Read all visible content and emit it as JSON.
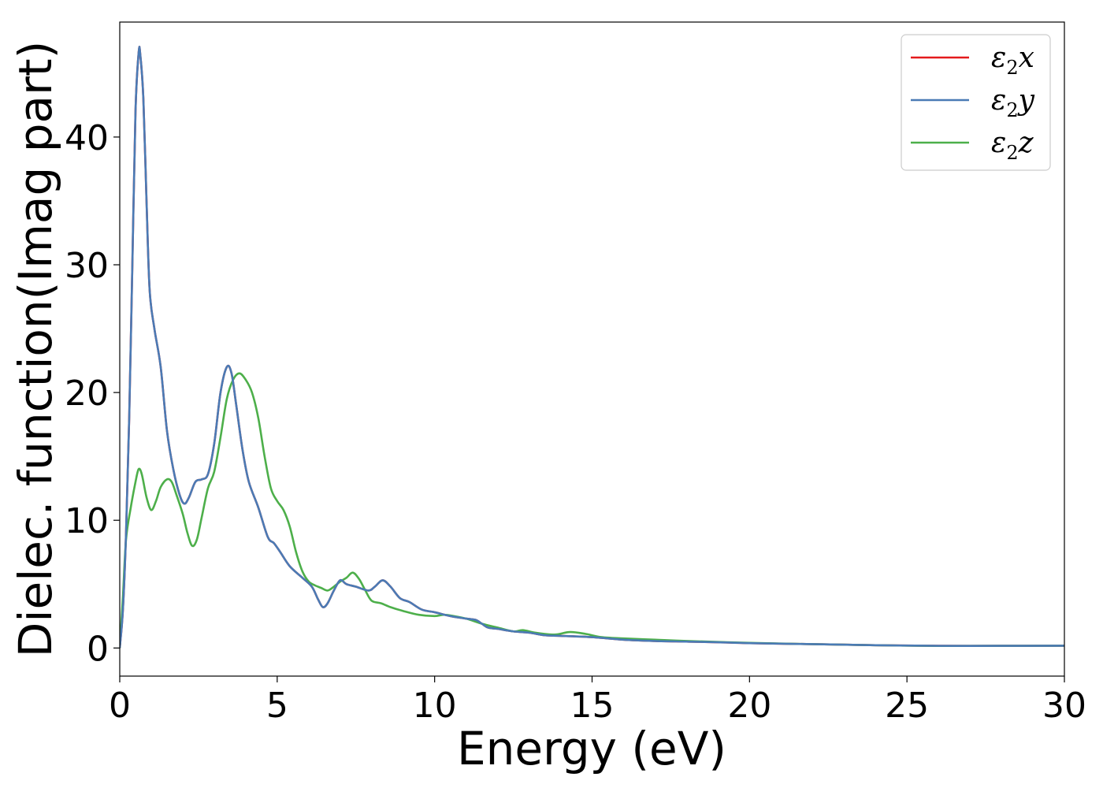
{
  "chart_data": {
    "type": "line",
    "xlabel": "Energy (eV)",
    "ylabel": "Dielec. function(Imag part)",
    "xlim": [
      0,
      30
    ],
    "ylim": [
      -2.2,
      49
    ],
    "xticks": [
      0,
      5,
      10,
      15,
      20,
      25,
      30
    ],
    "yticks": [
      0,
      10,
      20,
      30,
      40
    ],
    "grid": false,
    "legend_position": "top-right",
    "series": [
      {
        "name": "ε₂x",
        "legend": {
          "base": "ε",
          "sub": "2",
          "var": "x"
        },
        "color": "#e41a1c",
        "points": [
          [
            0,
            0
          ],
          [
            0.1,
            3
          ],
          [
            0.2,
            9
          ],
          [
            0.3,
            18
          ],
          [
            0.4,
            30
          ],
          [
            0.5,
            42
          ],
          [
            0.6,
            46.6
          ],
          [
            0.65,
            46.5
          ],
          [
            0.75,
            43
          ],
          [
            0.85,
            35
          ],
          [
            0.95,
            28
          ],
          [
            1.1,
            25
          ],
          [
            1.3,
            22
          ],
          [
            1.5,
            17
          ],
          [
            1.7,
            14
          ],
          [
            1.9,
            12
          ],
          [
            2.05,
            11.3
          ],
          [
            2.2,
            11.8
          ],
          [
            2.4,
            13
          ],
          [
            2.6,
            13.2
          ],
          [
            2.8,
            13.6
          ],
          [
            3.0,
            16
          ],
          [
            3.2,
            20
          ],
          [
            3.4,
            22
          ],
          [
            3.55,
            21.5
          ],
          [
            3.7,
            19
          ],
          [
            3.9,
            15.5
          ],
          [
            4.1,
            13
          ],
          [
            4.4,
            11
          ],
          [
            4.7,
            8.7
          ],
          [
            4.9,
            8.2
          ],
          [
            5.1,
            7.5
          ],
          [
            5.4,
            6.4
          ],
          [
            5.8,
            5.5
          ],
          [
            6.1,
            4.8
          ],
          [
            6.3,
            3.8
          ],
          [
            6.45,
            3.2
          ],
          [
            6.6,
            3.5
          ],
          [
            6.8,
            4.5
          ],
          [
            7.0,
            5.3
          ],
          [
            7.2,
            5.0
          ],
          [
            7.5,
            4.8
          ],
          [
            7.9,
            4.5
          ],
          [
            8.1,
            4.8
          ],
          [
            8.35,
            5.3
          ],
          [
            8.6,
            4.8
          ],
          [
            8.9,
            3.9
          ],
          [
            9.2,
            3.6
          ],
          [
            9.6,
            3.0
          ],
          [
            10,
            2.8
          ],
          [
            10.5,
            2.5
          ],
          [
            11.0,
            2.3
          ],
          [
            11.3,
            2.2
          ],
          [
            11.5,
            1.9
          ],
          [
            11.7,
            1.6
          ],
          [
            12.0,
            1.5
          ],
          [
            12.5,
            1.3
          ],
          [
            13.0,
            1.2
          ],
          [
            13.5,
            1.0
          ],
          [
            14,
            0.95
          ],
          [
            15,
            0.85
          ],
          [
            16,
            0.65
          ],
          [
            17,
            0.55
          ],
          [
            18,
            0.5
          ],
          [
            19,
            0.45
          ],
          [
            20,
            0.38
          ],
          [
            22,
            0.3
          ],
          [
            24,
            0.22
          ],
          [
            26,
            0.17
          ],
          [
            28,
            0.17
          ],
          [
            30,
            0.18
          ]
        ]
      },
      {
        "name": "ε₂y",
        "legend": {
          "base": "ε",
          "sub": "2",
          "var": "y"
        },
        "color": "#4a7bb5",
        "points": [
          [
            0,
            0
          ],
          [
            0.1,
            3
          ],
          [
            0.2,
            9
          ],
          [
            0.3,
            18
          ],
          [
            0.4,
            30
          ],
          [
            0.5,
            42
          ],
          [
            0.6,
            46.6
          ],
          [
            0.65,
            46.5
          ],
          [
            0.75,
            43
          ],
          [
            0.85,
            35
          ],
          [
            0.95,
            28
          ],
          [
            1.1,
            25
          ],
          [
            1.3,
            22
          ],
          [
            1.5,
            17
          ],
          [
            1.7,
            14
          ],
          [
            1.9,
            12
          ],
          [
            2.05,
            11.3
          ],
          [
            2.2,
            11.8
          ],
          [
            2.4,
            13
          ],
          [
            2.6,
            13.2
          ],
          [
            2.8,
            13.6
          ],
          [
            3.0,
            16
          ],
          [
            3.2,
            20
          ],
          [
            3.4,
            22
          ],
          [
            3.55,
            21.5
          ],
          [
            3.7,
            19
          ],
          [
            3.9,
            15.5
          ],
          [
            4.1,
            13
          ],
          [
            4.4,
            11
          ],
          [
            4.7,
            8.7
          ],
          [
            4.9,
            8.2
          ],
          [
            5.1,
            7.5
          ],
          [
            5.4,
            6.4
          ],
          [
            5.8,
            5.5
          ],
          [
            6.1,
            4.8
          ],
          [
            6.3,
            3.8
          ],
          [
            6.45,
            3.2
          ],
          [
            6.6,
            3.5
          ],
          [
            6.8,
            4.5
          ],
          [
            7.0,
            5.3
          ],
          [
            7.2,
            5.0
          ],
          [
            7.5,
            4.8
          ],
          [
            7.9,
            4.5
          ],
          [
            8.1,
            4.8
          ],
          [
            8.35,
            5.3
          ],
          [
            8.6,
            4.8
          ],
          [
            8.9,
            3.9
          ],
          [
            9.2,
            3.6
          ],
          [
            9.6,
            3.0
          ],
          [
            10,
            2.8
          ],
          [
            10.5,
            2.5
          ],
          [
            11.0,
            2.3
          ],
          [
            11.3,
            2.2
          ],
          [
            11.5,
            1.9
          ],
          [
            11.7,
            1.6
          ],
          [
            12.0,
            1.5
          ],
          [
            12.5,
            1.3
          ],
          [
            13.0,
            1.2
          ],
          [
            13.5,
            1.0
          ],
          [
            14,
            0.95
          ],
          [
            15,
            0.85
          ],
          [
            16,
            0.65
          ],
          [
            17,
            0.55
          ],
          [
            18,
            0.5
          ],
          [
            19,
            0.45
          ],
          [
            20,
            0.38
          ],
          [
            22,
            0.3
          ],
          [
            24,
            0.22
          ],
          [
            26,
            0.17
          ],
          [
            28,
            0.17
          ],
          [
            30,
            0.18
          ]
        ]
      },
      {
        "name": "ε₂z",
        "legend": {
          "base": "ε",
          "sub": "2",
          "var": "z"
        },
        "color": "#4daf4a",
        "points": [
          [
            0,
            0
          ],
          [
            0.1,
            4
          ],
          [
            0.2,
            8.5
          ],
          [
            0.35,
            11
          ],
          [
            0.5,
            13
          ],
          [
            0.6,
            14
          ],
          [
            0.7,
            13.6
          ],
          [
            0.85,
            11.8
          ],
          [
            1.0,
            10.8
          ],
          [
            1.15,
            11.5
          ],
          [
            1.3,
            12.6
          ],
          [
            1.5,
            13.2
          ],
          [
            1.65,
            13.0
          ],
          [
            1.8,
            12.0
          ],
          [
            2.0,
            10.5
          ],
          [
            2.15,
            9.0
          ],
          [
            2.3,
            8.0
          ],
          [
            2.45,
            8.5
          ],
          [
            2.6,
            10.2
          ],
          [
            2.8,
            12.5
          ],
          [
            3.0,
            13.8
          ],
          [
            3.2,
            16.5
          ],
          [
            3.4,
            19.5
          ],
          [
            3.6,
            21.0
          ],
          [
            3.8,
            21.5
          ],
          [
            4.0,
            21.0
          ],
          [
            4.2,
            20.0
          ],
          [
            4.4,
            18.0
          ],
          [
            4.6,
            15.0
          ],
          [
            4.8,
            12.5
          ],
          [
            5.0,
            11.5
          ],
          [
            5.2,
            10.8
          ],
          [
            5.4,
            9.5
          ],
          [
            5.6,
            7.5
          ],
          [
            5.8,
            6.0
          ],
          [
            6.0,
            5.2
          ],
          [
            6.2,
            4.9
          ],
          [
            6.4,
            4.7
          ],
          [
            6.6,
            4.5
          ],
          [
            6.8,
            4.8
          ],
          [
            7.0,
            5.2
          ],
          [
            7.2,
            5.5
          ],
          [
            7.4,
            5.9
          ],
          [
            7.6,
            5.4
          ],
          [
            7.8,
            4.5
          ],
          [
            8.0,
            3.7
          ],
          [
            8.3,
            3.5
          ],
          [
            8.6,
            3.2
          ],
          [
            9.0,
            2.9
          ],
          [
            9.5,
            2.6
          ],
          [
            10,
            2.5
          ],
          [
            10.3,
            2.6
          ],
          [
            10.6,
            2.5
          ],
          [
            11,
            2.3
          ],
          [
            11.5,
            1.9
          ],
          [
            12,
            1.6
          ],
          [
            12.5,
            1.3
          ],
          [
            12.8,
            1.4
          ],
          [
            13.2,
            1.2
          ],
          [
            13.8,
            1.05
          ],
          [
            14.3,
            1.25
          ],
          [
            14.8,
            1.1
          ],
          [
            15.3,
            0.85
          ],
          [
            16,
            0.75
          ],
          [
            17,
            0.65
          ],
          [
            18,
            0.55
          ],
          [
            20,
            0.4
          ],
          [
            22,
            0.3
          ],
          [
            24,
            0.22
          ],
          [
            26,
            0.16
          ],
          [
            28,
            0.17
          ],
          [
            30,
            0.18
          ]
        ]
      }
    ]
  }
}
